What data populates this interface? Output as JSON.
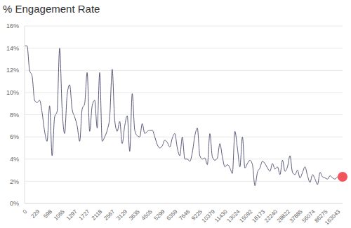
{
  "chart_data": {
    "type": "line",
    "title": "% Engagement Rate",
    "categories": [
      "0",
      null,
      null,
      null,
      null,
      "229",
      null,
      null,
      null,
      null,
      "598",
      null,
      null,
      null,
      null,
      "1065",
      null,
      null,
      null,
      null,
      "1297",
      null,
      null,
      null,
      null,
      "1727",
      null,
      null,
      null,
      null,
      "2118",
      null,
      null,
      null,
      null,
      "2567",
      null,
      null,
      null,
      null,
      "3129",
      null,
      null,
      null,
      null,
      "3635",
      null,
      null,
      null,
      null,
      "4505",
      null,
      null,
      null,
      null,
      "5299",
      null,
      null,
      null,
      null,
      "6359",
      null,
      null,
      null,
      null,
      "7646",
      null,
      null,
      null,
      null,
      "9225",
      null,
      null,
      null,
      null,
      "10379",
      null,
      null,
      null,
      null,
      "11430",
      null,
      null,
      null,
      null,
      "13024",
      null,
      null,
      null,
      null,
      "15092",
      null,
      null,
      null,
      null,
      "18173",
      null,
      null,
      null,
      null,
      "22240",
      null,
      null,
      null,
      null,
      "28822",
      null,
      null,
      null,
      null,
      "37885",
      null,
      null,
      null,
      null,
      "56074",
      null,
      null,
      null,
      null,
      "86275",
      null,
      null,
      null,
      null,
      "163043",
      null,
      null
    ],
    "series": [
      {
        "name": "Engagement Rate",
        "color": "#5a5a7a",
        "marker": "end",
        "line_style": "smooth",
        "values": [
          14.2,
          14.2,
          12.0,
          11.5,
          9.3,
          9.1,
          9.3,
          8.2,
          6.5,
          5.6,
          8.8,
          4.3,
          7.8,
          8.3,
          14.0,
          8.5,
          6.3,
          9.8,
          10.7,
          8.5,
          7.8,
          7.0,
          5.6,
          8.5,
          9.0,
          11.8,
          6.5,
          8.8,
          9.3,
          6.8,
          11.8,
          5.6,
          6.0,
          6.6,
          7.8,
          12.1,
          7.5,
          6.5,
          7.4,
          5.4,
          7.0,
          7.9,
          4.7,
          9.9,
          6.6,
          6.1,
          6.0,
          7.2,
          6.3,
          6.5,
          6.6,
          6.6,
          6.0,
          5.3,
          5.0,
          5.2,
          5.7,
          5.5,
          5.1,
          5.9,
          6.3,
          5.0,
          4.3,
          6.0,
          4.0,
          4.0,
          3.8,
          4.6,
          6.1,
          6.8,
          4.3,
          4.0,
          4.1,
          3.5,
          6.3,
          4.2,
          3.9,
          4.1,
          5.4,
          4.2,
          3.3,
          3.5,
          3.2,
          2.7,
          6.5,
          5.0,
          3.3,
          6.0,
          3.2,
          3.6,
          3.9,
          3.5,
          1.6,
          2.8,
          3.2,
          3.8,
          3.6,
          3.2,
          2.9,
          3.6,
          3.1,
          3.3,
          2.6,
          3.9,
          2.9,
          3.3,
          4.3,
          2.8,
          2.6,
          3.0,
          2.3,
          2.8,
          3.3,
          2.5,
          1.9,
          2.6,
          2.2,
          1.7,
          2.8,
          2.4,
          2.3,
          2.2,
          2.5,
          2.3,
          2.2,
          2.4,
          2.3,
          2.4
        ]
      }
    ],
    "ylim": [
      0,
      16
    ],
    "yticks": [
      {
        "value": 0,
        "label": "0%"
      },
      {
        "value": 2,
        "label": "2%"
      },
      {
        "value": 4,
        "label": "4%"
      },
      {
        "value": 6,
        "label": "6%"
      },
      {
        "value": 8,
        "label": "8%"
      },
      {
        "value": 10,
        "label": "10%"
      },
      {
        "value": 12,
        "label": "12%"
      },
      {
        "value": 14,
        "label": "14%"
      },
      {
        "value": 16,
        "label": "16%"
      }
    ],
    "grid": true
  }
}
